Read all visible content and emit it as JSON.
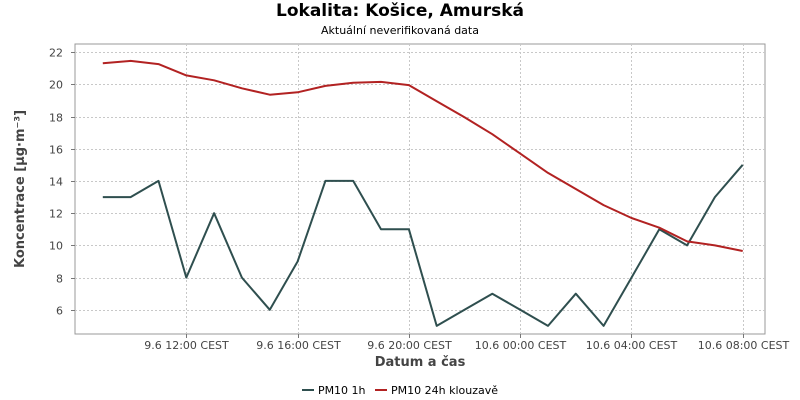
{
  "chart_data": {
    "type": "line",
    "title": "Lokalita: Košice, Amurská",
    "subtitle": "Aktuální neverifikovaná data",
    "xlabel": "Datum a čas",
    "ylabel": "Koncentrace [µg·m⁻³]",
    "ylim": [
      4.5,
      22.5
    ],
    "y_ticks": [
      6,
      8,
      10,
      12,
      14,
      16,
      18,
      20,
      22
    ],
    "x_ticks": [
      {
        "label": "9.6 12:00 CEST",
        "x": "2024-06-09 12:00"
      },
      {
        "label": "9.6 16:00 CEST",
        "x": "2024-06-09 16:00"
      },
      {
        "label": "9.6 20:00 CEST",
        "x": "2024-06-09 20:00"
      },
      {
        "label": "10.6 00:00 CEST",
        "x": "2024-06-10 00:00"
      },
      {
        "label": "10.6 04:00 CEST",
        "x": "2024-06-10 04:00"
      },
      {
        "label": "10.6 08:00 CEST",
        "x": "2024-06-10 08:00"
      }
    ],
    "x": [
      "2024-06-09 09:00",
      "2024-06-09 10:00",
      "2024-06-09 11:00",
      "2024-06-09 12:00",
      "2024-06-09 13:00",
      "2024-06-09 14:00",
      "2024-06-09 15:00",
      "2024-06-09 16:00",
      "2024-06-09 17:00",
      "2024-06-09 18:00",
      "2024-06-09 19:00",
      "2024-06-09 20:00",
      "2024-06-09 21:00",
      "2024-06-09 22:00",
      "2024-06-09 23:00",
      "2024-06-10 00:00",
      "2024-06-10 01:00",
      "2024-06-10 02:00",
      "2024-06-10 03:00",
      "2024-06-10 04:00",
      "2024-06-10 05:00",
      "2024-06-10 06:00",
      "2024-06-10 07:00",
      "2024-06-10 08:00"
    ],
    "grid": true,
    "legend_position": "bottom",
    "series": [
      {
        "name": "PM10 1h",
        "color": "#2f4f4f",
        "values": [
          13,
          13,
          14,
          8,
          12,
          8,
          6,
          9,
          14,
          14,
          11,
          11,
          5,
          6,
          7,
          6,
          5,
          7,
          5,
          8,
          11,
          10,
          13,
          15
        ]
      },
      {
        "name": "PM10 24h klouzavě",
        "color": "#b22222",
        "values": [
          21.3,
          21.45,
          21.25,
          20.55,
          20.25,
          19.75,
          19.35,
          19.5,
          19.9,
          20.1,
          20.15,
          19.95,
          18.95,
          17.95,
          16.9,
          15.7,
          14.5,
          13.5,
          12.5,
          11.7,
          11.1,
          10.25,
          10.0,
          9.65
        ]
      }
    ]
  }
}
